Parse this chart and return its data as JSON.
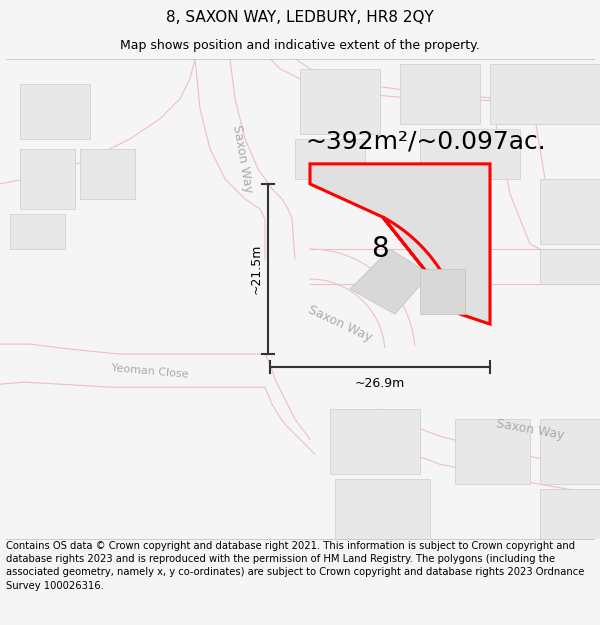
{
  "title": "8, SAXON WAY, LEDBURY, HR8 2QY",
  "subtitle": "Map shows position and indicative extent of the property.",
  "area_label": "~392m²/~0.097ac.",
  "number_label": "8",
  "dim_height": "~21.5m",
  "dim_width": "~26.9m",
  "copyright_text": "Contains OS data © Crown copyright and database right 2021. This information is subject to Crown copyright and database rights 2023 and is reproduced with the permission of HM Land Registry. The polygons (including the associated geometry, namely x, y co-ordinates) are subject to Crown copyright and database rights 2023 Ordnance Survey 100026316.",
  "bg_color": "#f5f5f5",
  "map_bg": "#ffffff",
  "road_line_color": "#f0bfbf",
  "building_fill": "#e8e8e8",
  "building_outline": "#cccccc",
  "plot_fill": "#e0e0e0",
  "plot_outline": "#ff0000",
  "dim_color": "#333333",
  "road_label_color": "#aaaaaa",
  "title_fs": 11,
  "subtitle_fs": 9,
  "area_fs": 18,
  "number_fs": 20,
  "dim_fs": 9,
  "road_label_fs": 9,
  "copy_fs": 7.2
}
